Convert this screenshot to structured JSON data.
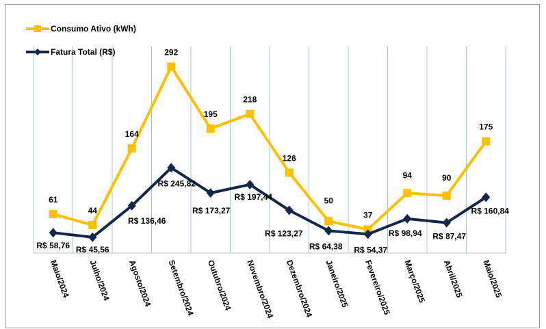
{
  "chart_data": {
    "type": "line",
    "title": "",
    "categories": [
      "Maio/2024",
      "Julho/2024",
      "Agosto/2024",
      "Setembro/2024",
      "Outubro/2024",
      "Novembro/2024",
      "Dezembro/2024",
      "Janeiro/2025",
      "Fevereiro/2025",
      "Março/2025",
      "Abril/2025",
      "Maio/2025"
    ],
    "series": [
      {
        "name": "Consumo Ativo (kWh)",
        "color": "#FFC000",
        "marker": "square",
        "axis": "primary",
        "values": [
          61,
          44,
          164,
          292,
          195,
          218,
          126,
          50,
          37,
          94,
          90,
          175
        ],
        "labels": [
          "61",
          "44",
          "164",
          "292",
          "195",
          "218",
          "126",
          "50",
          "37",
          "94",
          "90",
          "175"
        ]
      },
      {
        "name": "Fatura Total (R$)",
        "color": "#14264A",
        "marker": "diamond",
        "axis": "secondary",
        "values": [
          58.76,
          45.56,
          136.46,
          245.82,
          173.27,
          197.44,
          123.27,
          64.38,
          54.37,
          98.94,
          87.47,
          160.84
        ],
        "labels": [
          "R$ 58,76",
          "R$ 45,56",
          "R$ 136,46",
          "R$ 245,82",
          "R$ 173,27",
          "R$ 197,44",
          "R$ 123,27",
          "R$ 64,38",
          "R$ 54,37",
          "R$ 98,94",
          "R$ 87,47",
          "R$ 160,84"
        ]
      }
    ],
    "primary_ylim": [
      0,
      375
    ],
    "secondary_ylim": [
      0,
      690
    ],
    "grid": "vertical",
    "legend": "top-left",
    "gridline_color": "#A9C4EB"
  }
}
